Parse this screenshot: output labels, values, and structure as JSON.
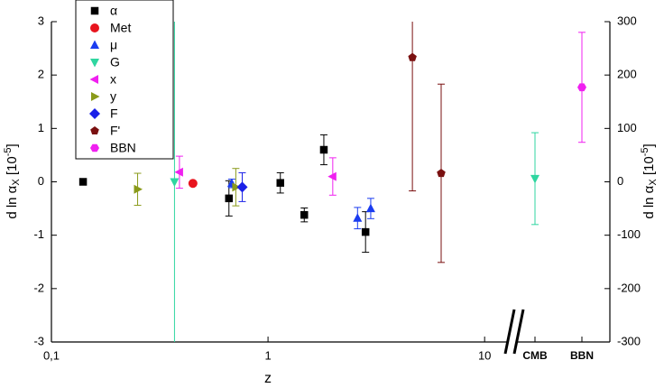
{
  "chart_data": {
    "type": "scatter",
    "x_label": "z",
    "y_label": {
      "main": "d ln α",
      "sub": "X",
      "pre": " [10",
      "sup": "-5",
      "post": "]"
    },
    "xlog": true,
    "xlim": [
      0.1,
      13.7
    ],
    "xticks": [
      {
        "value": 0.1,
        "label": "0,1"
      },
      1,
      10
    ],
    "x_categories": [
      "CMB",
      "BBN"
    ],
    "ylim": [
      -3,
      3
    ],
    "yticks": [
      -3,
      -2,
      -1,
      0,
      1,
      2,
      3
    ],
    "y2lim": [
      -300,
      300
    ],
    "y2ticks": [
      -300,
      -200,
      -100,
      0,
      100,
      200,
      300
    ],
    "legend": "top-left",
    "series": [
      {
        "name": "α",
        "color": "#000000",
        "marker": "square",
        "x": [
          0.14,
          0.66,
          1.14,
          1.47,
          1.81,
          2.82
        ],
        "values": [
          0,
          -0.31,
          -0.02,
          -0.62,
          0.6,
          -0.94
        ],
        "errors": [
          null,
          0.33,
          0.19,
          0.13,
          0.28,
          0.38
        ]
      },
      {
        "name": "Met",
        "color": "#e8141e",
        "marker": "circle",
        "x": [
          0.45
        ],
        "values": [
          -0.03
        ],
        "errors": [
          null
        ]
      },
      {
        "name": "μ",
        "color": "#1a3cf0",
        "marker": "triangle-up",
        "x": [
          0.68,
          2.59,
          2.98
        ],
        "values": [
          -0.03,
          -0.68,
          -0.5
        ],
        "errors": [
          0.08,
          0.2,
          0.19
        ]
      },
      {
        "name": "G",
        "color": "#2fd6a0",
        "marker": "triangle-down",
        "x": [
          0.37,
          "CMB"
        ],
        "values": [
          0,
          0.06
        ],
        "errors": [
          4,
          0.86
        ]
      },
      {
        "name": "x",
        "color": "#f020f0",
        "marker": "triangle-left",
        "x": [
          0.39,
          1.99
        ],
        "values": [
          0.18,
          0.1
        ],
        "errors": [
          0.3,
          0.35
        ]
      },
      {
        "name": "y",
        "color": "#8a9a1a",
        "marker": "triangle-right",
        "x": [
          0.25,
          0.71
        ],
        "values": [
          -0.14,
          -0.1
        ],
        "errors": [
          0.3,
          0.35
        ]
      },
      {
        "name": "F",
        "color": "#1a20e8",
        "marker": "diamond",
        "x": [
          0.76
        ],
        "values": [
          -0.1
        ],
        "errors": [
          0.27
        ]
      },
      {
        "name": "F'",
        "color": "#7a1010",
        "marker": "pentagon",
        "x": [
          4.64,
          6.3
        ],
        "values": [
          2.33,
          0.16
        ],
        "errors": [
          2.5,
          1.67
        ]
      },
      {
        "name": "BBN",
        "color": "#f020f0",
        "marker": "hexagon",
        "x": [
          "BBN"
        ],
        "values": [
          1.77
        ],
        "errors": [
          1.03
        ]
      }
    ]
  }
}
